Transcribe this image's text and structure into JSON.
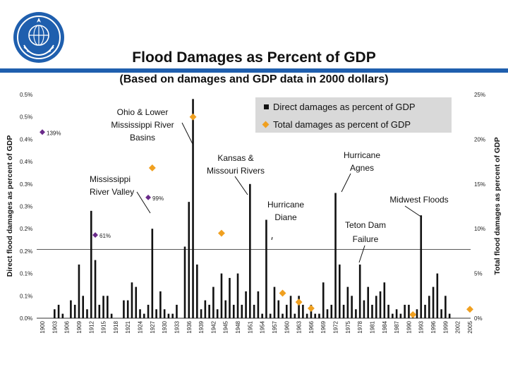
{
  "header": {
    "title": "Flood Damages as Percent of GDP",
    "subtitle": "(Based on damages and GDP data in 2000 dollars)"
  },
  "colors": {
    "bars": "#111111",
    "diamonds": "#f0a020",
    "labeled_points": "#6a2a8a",
    "stripe": "#1f5fae"
  },
  "chart_data": {
    "type": "bar",
    "title": "Flood Damages as Percent of GDP",
    "ylabel_left": "Direct flood damages as percent of GDP",
    "ylabel_right": "Total flood damages as percent of GDP",
    "left_ticks": [
      "0.5%",
      "0.5%",
      "0.4%",
      "0.4%",
      "0.3%",
      "0.3%",
      "0.2%",
      "0.2%",
      "0.1%",
      "0.1%",
      "0.0%"
    ],
    "right_ticks": [
      "25%",
      "20%",
      "15%",
      "10%",
      "5%",
      "0%"
    ],
    "ylim_left": [
      0,
      0.5
    ],
    "ylim_right": [
      0,
      25
    ],
    "xticks": [
      "1900",
      "1903",
      "1906",
      "1909",
      "1912",
      "1915",
      "1918",
      "1921",
      "1924",
      "1927",
      "1930",
      "1933",
      "1936",
      "1939",
      "1942",
      "1945",
      "1948",
      "1951",
      "1954",
      "1957",
      "1960",
      "1963",
      "1966",
      "1969",
      "1972",
      "1975",
      "1978",
      "1981",
      "1984",
      "1987",
      "1990",
      "1993",
      "1996",
      "1999",
      "2002",
      "2005"
    ],
    "series": [
      {
        "name": "Direct damages as percent of GDP",
        "kind": "bar",
        "x": [
          1903,
          1904,
          1905,
          1907,
          1908,
          1909,
          1910,
          1911,
          1912,
          1913,
          1914,
          1915,
          1916,
          1917,
          1920,
          1921,
          1922,
          1923,
          1924,
          1925,
          1926,
          1927,
          1928,
          1929,
          1930,
          1931,
          1932,
          1933,
          1935,
          1936,
          1937,
          1938,
          1939,
          1940,
          1941,
          1942,
          1943,
          1944,
          1945,
          1946,
          1947,
          1948,
          1949,
          1950,
          1951,
          1952,
          1953,
          1954,
          1955,
          1956,
          1957,
          1958,
          1959,
          1960,
          1961,
          1962,
          1963,
          1964,
          1965,
          1966,
          1967,
          1968,
          1969,
          1970,
          1971,
          1972,
          1973,
          1974,
          1975,
          1976,
          1977,
          1978,
          1979,
          1980,
          1981,
          1982,
          1983,
          1984,
          1985,
          1986,
          1987,
          1988,
          1989,
          1990,
          1991,
          1992,
          1993,
          1994,
          1995,
          1996,
          1997,
          1998,
          1999,
          2000
        ],
        "values": [
          0.02,
          0.03,
          0.01,
          0.04,
          0.03,
          0.12,
          0.05,
          0.02,
          0.24,
          0.13,
          0.03,
          0.05,
          0.05,
          0.01,
          0.04,
          0.04,
          0.08,
          0.07,
          0.02,
          0.01,
          0.03,
          0.2,
          0.02,
          0.06,
          0.02,
          0.01,
          0.01,
          0.03,
          0.16,
          0.26,
          0.49,
          0.12,
          0.02,
          0.04,
          0.03,
          0.07,
          0.02,
          0.1,
          0.04,
          0.09,
          0.03,
          0.1,
          0.03,
          0.06,
          0.3,
          0.03,
          0.06,
          0.01,
          0.22,
          0.01,
          0.07,
          0.04,
          0.01,
          0.03,
          0.05,
          0.01,
          0.05,
          0.03,
          0.01,
          0.03,
          0.01,
          0.01,
          0.08,
          0.02,
          0.03,
          0.28,
          0.12,
          0.03,
          0.07,
          0.05,
          0.02,
          0.12,
          0.04,
          0.07,
          0.03,
          0.05,
          0.06,
          0.08,
          0.03,
          0.01,
          0.02,
          0.01,
          0.03,
          0.03,
          0.01,
          0.02,
          0.23,
          0.03,
          0.05,
          0.07,
          0.1,
          0.02,
          0.05,
          0.01
        ]
      },
      {
        "name": "Total damages as percent of GDP",
        "kind": "diamond",
        "x": [
          1937,
          1927,
          1944,
          1959,
          1963,
          1966,
          1991,
          2005
        ],
        "values": [
          22.5,
          16.8,
          9.5,
          2.8,
          1.8,
          1.1,
          0.4,
          1.0
        ]
      },
      {
        "name": "Labeled total damages",
        "kind": "labeled_diamond",
        "x": [
          1900,
          1926,
          1913
        ],
        "values": [
          20.8,
          13.5,
          9.3
        ],
        "labels": [
          "139%",
          "99%",
          "61%"
        ]
      }
    ],
    "legend": [
      "Direct damages as percent of GDP",
      "Total damages as percent of GDP"
    ],
    "legend_position": "top-right",
    "reference_line": {
      "axis": "right",
      "value": 7.7
    },
    "annotations": [
      {
        "lines": [
          "Ohio & Lower",
          "Mississippi River",
          "Basins"
        ],
        "points_to_year": 1937
      },
      {
        "lines": [
          "Mississippi",
          "River Valley"
        ],
        "points_to_year": 1927
      },
      {
        "lines": [
          "Kansas &",
          "Missouri Rivers"
        ],
        "points_to_year": 1951
      },
      {
        "lines": [
          "Hurricane",
          "Diane"
        ],
        "points_to_year": 1955
      },
      {
        "lines": [
          "Hurricane",
          "Agnes"
        ],
        "points_to_year": 1972
      },
      {
        "lines": [
          "Teton Dam",
          "Failure"
        ],
        "points_to_year": 1976
      },
      {
        "lines": [
          "Midwest Floods"
        ],
        "points_to_year": 1993
      }
    ]
  }
}
